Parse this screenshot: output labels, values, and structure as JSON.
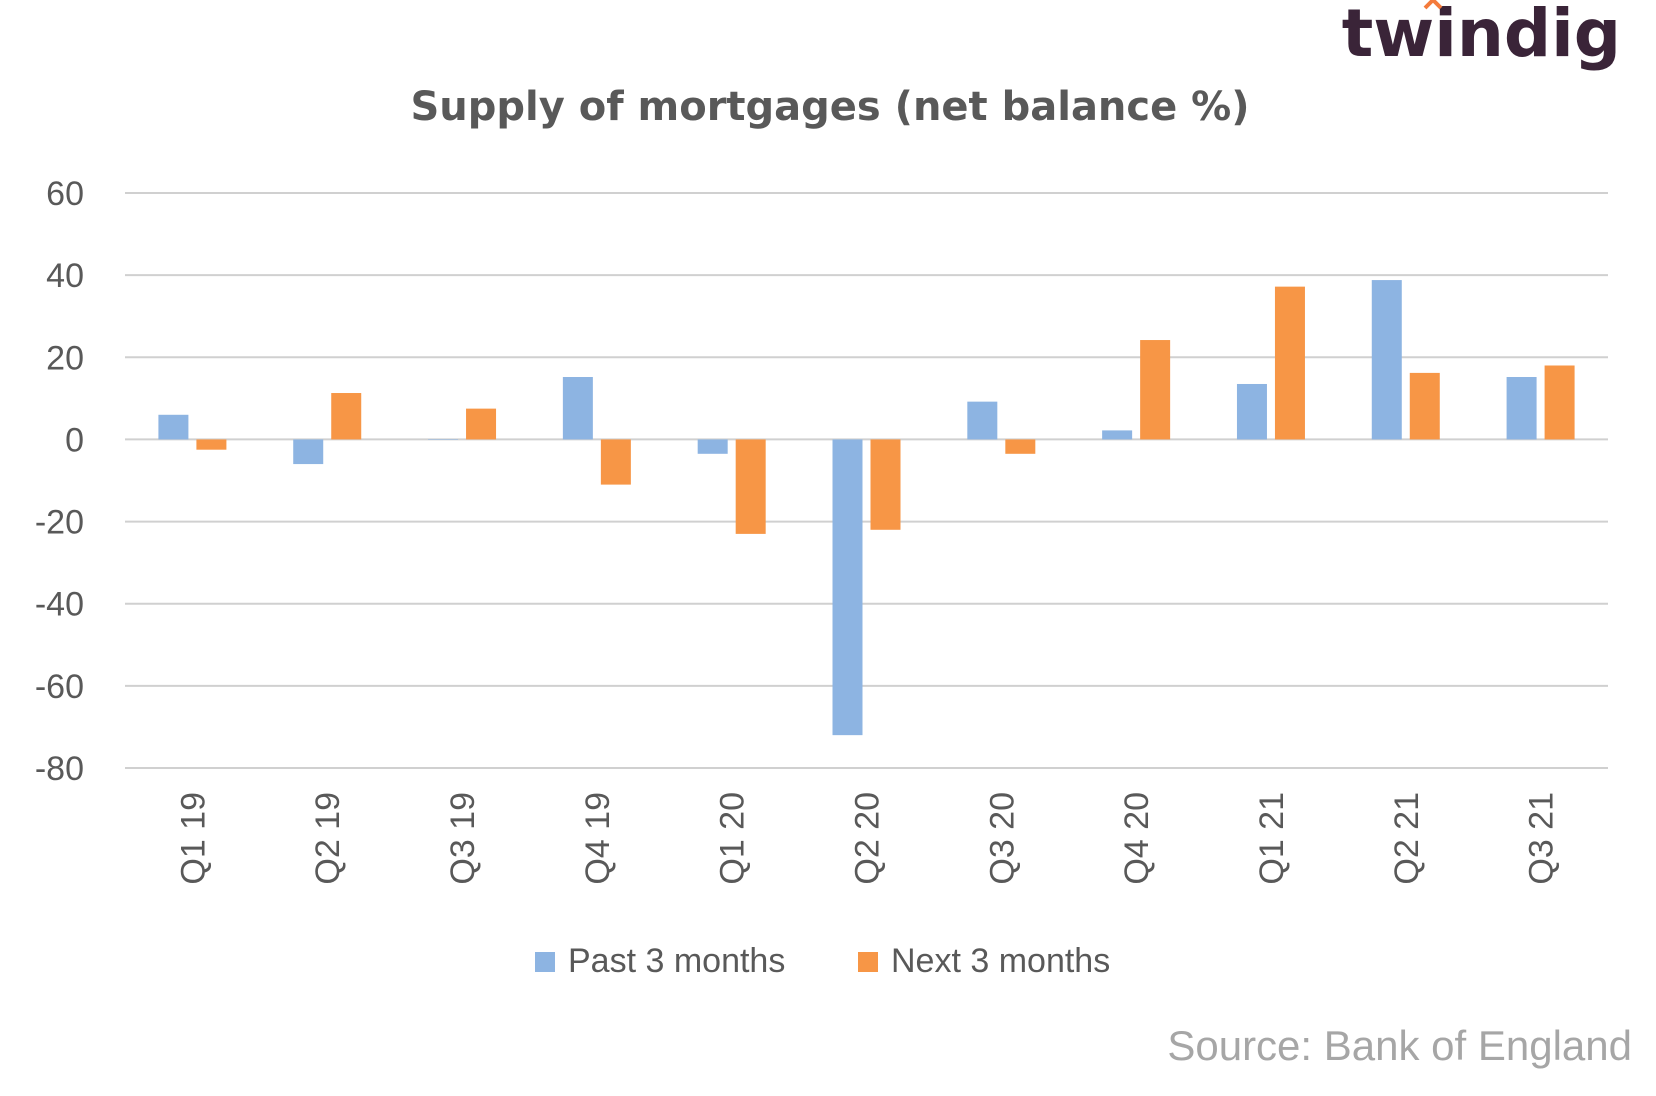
{
  "logo": {
    "text": "twindig",
    "color": "#3a2438",
    "accent": "#f47b3c"
  },
  "source": "Source: Bank of England",
  "colors": {
    "past": "#8db4e2",
    "next": "#f79646",
    "grid": "#d0d0d0",
    "axis_text": "#595959",
    "title": "#595959",
    "source": "#a6a6a6"
  },
  "chart_data": {
    "type": "bar",
    "title": "Supply of mortgages (net balance %)",
    "categories": [
      "Q1 19",
      "Q2 19",
      "Q3 19",
      "Q4 19",
      "Q1 20",
      "Q2 20",
      "Q3 20",
      "Q4 20",
      "Q1 21",
      "Q2 21",
      "Q3 21"
    ],
    "series": [
      {
        "name": "Past 3 months",
        "values": [
          6,
          -6,
          0,
          15.2,
          -3.5,
          -72,
          9.2,
          2.2,
          13.5,
          38.8,
          15.2
        ]
      },
      {
        "name": "Next 3 months",
        "values": [
          -2.5,
          11.3,
          7.5,
          -11,
          -23,
          -22,
          -3.5,
          24.2,
          37.2,
          16.2,
          18
        ]
      }
    ],
    "ylim": [
      -80,
      60
    ],
    "yticks": [
      60,
      40,
      20,
      0,
      -20,
      -40,
      -60,
      -80
    ],
    "grid": true,
    "legend": "bottom"
  }
}
